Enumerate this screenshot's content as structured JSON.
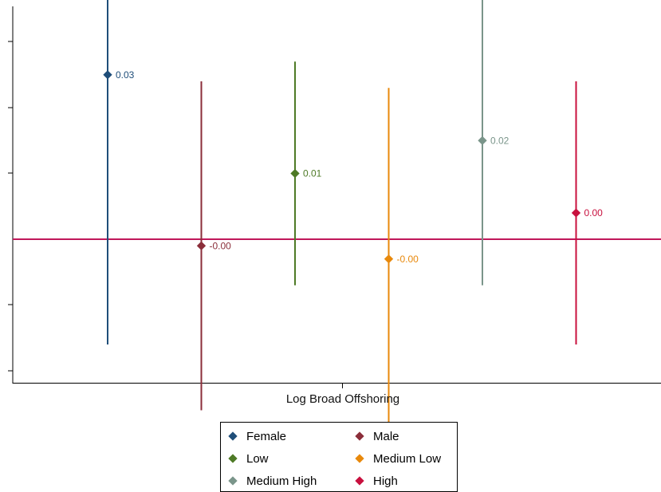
{
  "chart_data": {
    "type": "scatter",
    "xlabel": "Log Broad Offshoring",
    "ylabel": "",
    "ylim": [
      -0.04,
      0.07
    ],
    "zero_line": 0,
    "zero_line_color": "#c0185a",
    "series": [
      {
        "name": "Female",
        "color": "#1f4e79",
        "point": 0.025,
        "label": "0.03",
        "ci": [
          -0.016,
          0.066
        ]
      },
      {
        "name": "Male",
        "color": "#8b2e3a",
        "point": -0.001,
        "label": "-0.00",
        "ci": [
          -0.026,
          0.024
        ]
      },
      {
        "name": "Low",
        "color": "#4e7a26",
        "point": 0.01,
        "label": "0.01",
        "ci": [
          -0.007,
          0.027
        ]
      },
      {
        "name": "Medium Low",
        "color": "#e8890c",
        "point": -0.003,
        "label": "-0.00",
        "ci": [
          -0.029,
          0.023
        ]
      },
      {
        "name": "Medium High",
        "color": "#7a958a",
        "point": 0.015,
        "label": "0.02",
        "ci": [
          -0.007,
          0.037
        ]
      },
      {
        "name": "High",
        "color": "#c8103e",
        "point": 0.004,
        "label": "0.00",
        "ci": [
          -0.016,
          0.024
        ]
      }
    ]
  }
}
